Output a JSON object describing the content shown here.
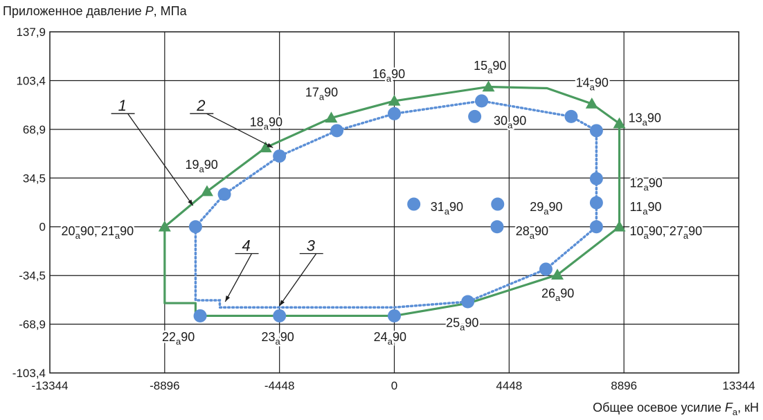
{
  "chart_data": {
    "type": "scatter",
    "title": "",
    "ylabel": "Приложенное давление P, МПа",
    "xlabel": "Общее осевое усилие Fa, кН",
    "x_ticks": [
      -13344,
      -8896,
      -4448,
      0,
      4448,
      8896,
      13344
    ],
    "x_tick_labels": [
      "-13344",
      "-8896",
      "-4448",
      "0",
      "4448",
      "8896",
      "13344"
    ],
    "y_ticks": [
      -103.4,
      -68.9,
      -34.5,
      0,
      34.5,
      68.9,
      103.4,
      137.9
    ],
    "y_tick_labels": [
      "-103,4",
      "-68,9",
      "-34,5",
      "0",
      "34,5",
      "68,9",
      "103,4",
      "137,9"
    ],
    "xlim": [
      -13344,
      13344
    ],
    "ylim": [
      -103.4,
      137.9
    ],
    "grid": true,
    "colors": {
      "green": "#4a9b5f",
      "blue": "#5b8fd6",
      "grid": "#1a1a1a"
    },
    "series": [
      {
        "name": "",
        "style": "green-solid-line",
        "points": [
          {
            "x": -8896,
            "y": 0
          },
          {
            "x": -7256,
            "y": 25
          },
          {
            "x": -4983,
            "y": 56
          },
          {
            "x": -2442,
            "y": 77
          },
          {
            "x": 0,
            "y": 89
          },
          {
            "x": 3648,
            "y": 99
          },
          {
            "x": 5917,
            "y": 98
          },
          {
            "x": 7652,
            "y": 87
          },
          {
            "x": 8718,
            "y": 73
          },
          {
            "x": 8718,
            "y": 0
          },
          {
            "x": 6317,
            "y": -34
          },
          {
            "x": 2884,
            "y": -54
          },
          {
            "x": 0,
            "y": -63
          },
          {
            "x": -4448,
            "y": -63
          },
          {
            "x": -7700,
            "y": -63
          },
          {
            "x": -7700,
            "y": -54
          },
          {
            "x": -8896,
            "y": -54
          },
          {
            "x": -8896,
            "y": 0
          }
        ],
        "triangle_markers": [
          {
            "x": -8896,
            "y": 0
          },
          {
            "x": -7256,
            "y": 25
          },
          {
            "x": -4983,
            "y": 56
          },
          {
            "x": -2442,
            "y": 77
          },
          {
            "x": 0,
            "y": 89
          },
          {
            "x": 3648,
            "y": 99
          },
          {
            "x": 7652,
            "y": 87
          },
          {
            "x": 8718,
            "y": 73
          },
          {
            "x": 8718,
            "y": 0
          },
          {
            "x": 6317,
            "y": -34
          }
        ]
      },
      {
        "name": "",
        "style": "blue-dotted-line",
        "points": [
          {
            "x": -7700,
            "y": 0
          },
          {
            "x": -6583,
            "y": 23
          },
          {
            "x": -4448,
            "y": 50
          },
          {
            "x": -2224,
            "y": 68
          },
          {
            "x": 0,
            "y": 80
          },
          {
            "x": 3382,
            "y": 89
          },
          {
            "x": 6851,
            "y": 78
          },
          {
            "x": 7829,
            "y": 68
          },
          {
            "x": 7829,
            "y": 34
          },
          {
            "x": 7829,
            "y": 17
          },
          {
            "x": 7829,
            "y": 0
          },
          {
            "x": 5872,
            "y": -30
          },
          {
            "x": 2847,
            "y": -53
          },
          {
            "x": 0,
            "y": -57
          },
          {
            "x": -4448,
            "y": -57
          },
          {
            "x": -6761,
            "y": -57
          },
          {
            "x": -6761,
            "y": -52
          },
          {
            "x": -7700,
            "y": -52
          },
          {
            "x": -7700,
            "y": 0
          }
        ],
        "circle_markers": [
          {
            "x": -7700,
            "y": 0
          },
          {
            "x": -6583,
            "y": 23
          },
          {
            "x": -4448,
            "y": 50
          },
          {
            "x": -2224,
            "y": 68
          },
          {
            "x": 0,
            "y": 80
          },
          {
            "x": 3382,
            "y": 89
          },
          {
            "x": 6851,
            "y": 78
          },
          {
            "x": 7829,
            "y": 68
          },
          {
            "x": 7829,
            "y": 34
          },
          {
            "x": 7829,
            "y": 17
          },
          {
            "x": 7829,
            "y": 0
          },
          {
            "x": 5872,
            "y": -30
          },
          {
            "x": 2847,
            "y": -53
          },
          {
            "x": 0,
            "y": -63
          },
          {
            "x": -4448,
            "y": -63
          },
          {
            "x": -7522,
            "y": -63
          },
          {
            "x": 3115,
            "y": 78
          },
          {
            "x": 4003,
            "y": 16
          },
          {
            "x": 756,
            "y": 16
          },
          {
            "x": 3982,
            "y": 0
          }
        ]
      }
    ],
    "point_labels": [
      {
        "text": "13",
        "sub": "a",
        "suffix": "90",
        "x": 9070,
        "y": 77
      },
      {
        "text": "14",
        "sub": "a",
        "suffix": "90",
        "x": 7030,
        "y": 102
      },
      {
        "text": "15",
        "sub": "a",
        "suffix": "90",
        "x": 3075,
        "y": 114
      },
      {
        "text": "16",
        "sub": "a",
        "suffix": "90",
        "x": -850,
        "y": 108
      },
      {
        "text": "17",
        "sub": "a",
        "suffix": "90",
        "x": -3450,
        "y": 95
      },
      {
        "text": "18",
        "sub": "a",
        "suffix": "90",
        "x": -5600,
        "y": 74
      },
      {
        "text": "19",
        "sub": "a",
        "suffix": "90",
        "x": -8100,
        "y": 44
      },
      {
        "text": "20",
        "sub": "a",
        "suffix": "90, 21",
        "sub2": "a",
        "suffix2": "90",
        "x": -12900,
        "y": -3
      },
      {
        "text": "22",
        "sub": "a",
        "suffix": "90",
        "x": -9000,
        "y": -78
      },
      {
        "text": "23",
        "sub": "a",
        "suffix": "90",
        "x": -5150,
        "y": -78
      },
      {
        "text": "24",
        "sub": "a",
        "suffix": "90",
        "x": -800,
        "y": -78
      },
      {
        "text": "25",
        "sub": "a",
        "suffix": "90",
        "x": 2000,
        "y": -68
      },
      {
        "text": "26",
        "sub": "a",
        "suffix": "90",
        "x": 5700,
        "y": -47
      },
      {
        "text": "28",
        "sub": "a",
        "suffix": "90",
        "x": 4700,
        "y": -3
      },
      {
        "text": "29",
        "sub": "a",
        "suffix": "90",
        "x": 5250,
        "y": 14
      },
      {
        "text": "30",
        "sub": "a",
        "suffix": "90",
        "x": 3850,
        "y": 75
      },
      {
        "text": "31",
        "sub": "a",
        "suffix": "90",
        "x": 1400,
        "y": 14
      },
      {
        "text": "12",
        "sub": "a",
        "suffix": "90",
        "x": 9120,
        "y": 31
      },
      {
        "text": "11",
        "sub": "a",
        "suffix": "90",
        "x": 9120,
        "y": 14
      },
      {
        "text": "10",
        "sub": "a",
        "suffix": "90, 27",
        "sub2": "a",
        "suffix2": "90",
        "x": 9120,
        "y": -3
      }
    ],
    "callouts": [
      {
        "label": "1",
        "tx": -10700,
        "ty": 82,
        "px": -7800,
        "py": 15
      },
      {
        "label": "2",
        "tx": -7650,
        "ty": 82,
        "px": -4700,
        "py": 56
      },
      {
        "label": "3",
        "tx": -3400,
        "ty": -17,
        "px": -4448,
        "py": -56
      },
      {
        "label": "4",
        "tx": -5900,
        "ty": -17,
        "px": -6550,
        "py": -53
      }
    ]
  }
}
